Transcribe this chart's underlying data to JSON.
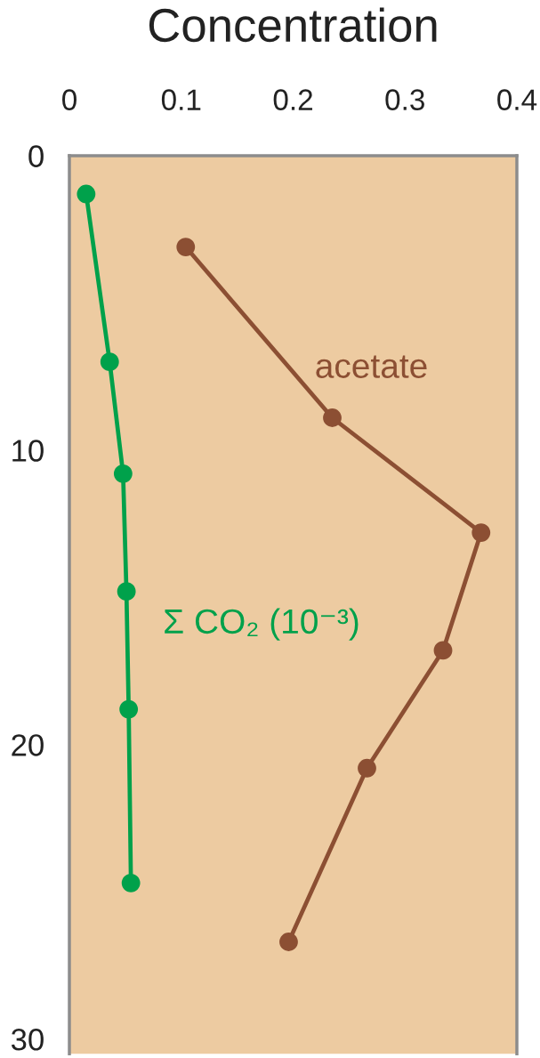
{
  "chart_data": {
    "type": "line",
    "xlabel": "Concentration",
    "series": [
      {
        "name": "Σ CO₂ (10⁻³)",
        "color": "#00a14b",
        "x": [
          0.015,
          0.036,
          0.048,
          0.051,
          0.053,
          0.055
        ],
        "values": [
          1.3,
          7.0,
          10.8,
          14.8,
          18.8,
          24.7
        ]
      },
      {
        "name": "acetate",
        "color": "#8c4f33",
        "x": [
          0.104,
          0.235,
          0.368,
          0.334,
          0.266,
          0.196
        ],
        "values": [
          3.1,
          8.9,
          12.8,
          16.8,
          20.8,
          26.7
        ]
      }
    ],
    "xlim": [
      0,
      0.4
    ],
    "xticks": [
      0,
      0.1,
      0.2,
      0.3,
      0.4
    ],
    "ylim": [
      30.5,
      0
    ],
    "yticks": [
      0,
      10,
      20,
      30
    ],
    "marker": "circle",
    "line_style": "solid"
  }
}
